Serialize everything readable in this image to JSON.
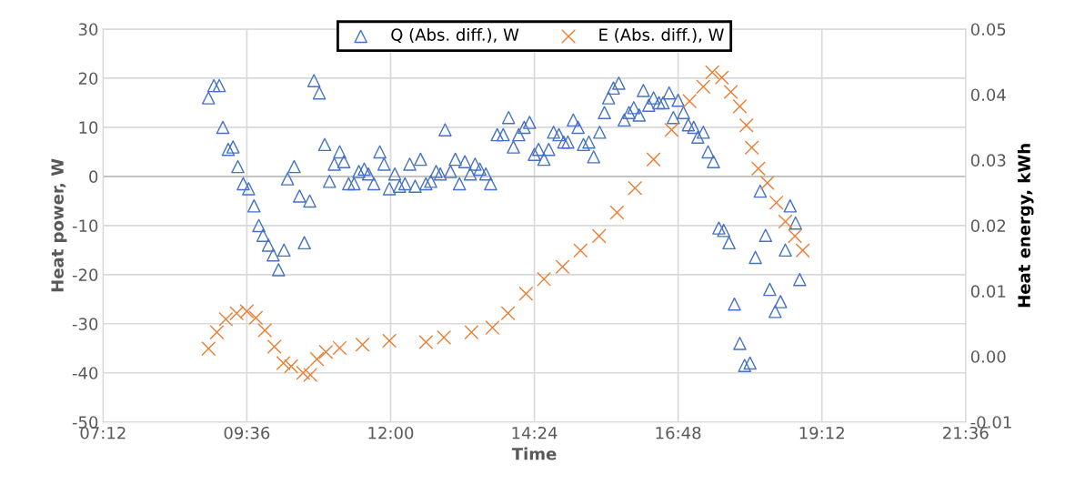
{
  "chart_data": {
    "type": "scatter",
    "xlabel": "Time",
    "ylabel": "Heat power, W",
    "y2label": "Heat energy, kWh",
    "xlim": [
      7.2,
      21.6
    ],
    "xticks": [
      {
        "value": 7.2,
        "label": "07:12"
      },
      {
        "value": 9.6,
        "label": "09:36"
      },
      {
        "value": 12,
        "label": "12:00"
      },
      {
        "value": 14.4,
        "label": "14:24"
      },
      {
        "value": 16.8,
        "label": "16:48"
      },
      {
        "value": 19.2,
        "label": "19:12"
      },
      {
        "value": 21.6,
        "label": "21:36"
      }
    ],
    "ylim": [
      -50,
      30
    ],
    "yticks": [
      -50,
      -40,
      -30,
      -20,
      -10,
      0,
      10,
      20,
      30
    ],
    "y2lim": [
      -0.01,
      0.05
    ],
    "y2ticks": [
      -0.01,
      {
        "value": 0,
        "label": "0.00"
      },
      0.01,
      0.02,
      0.03,
      0.04,
      0.05
    ],
    "grid": true,
    "legend": "top",
    "series": [
      {
        "name": "Q (Abs. diff.), W",
        "color": "#4472c4",
        "marker": "triangle",
        "x": [
          8.96,
          9.05,
          9.14,
          9.2,
          9.29,
          9.37,
          9.45,
          9.54,
          9.63,
          9.72,
          9.8,
          9.87,
          9.96,
          10.04,
          10.13,
          10.22,
          10.28,
          10.39,
          10.48,
          10.56,
          10.65,
          10.72,
          10.81,
          10.9,
          10.98,
          11.06,
          11.15,
          11.22,
          11.3,
          11.39,
          11.47,
          11.56,
          11.63,
          11.72,
          11.82,
          11.89,
          11.98,
          12.07,
          12.15,
          12.24,
          12.32,
          12.41,
          12.5,
          12.59,
          12.67,
          12.76,
          12.83,
          12.91,
          13.0,
          13.08,
          13.15,
          13.24,
          13.33,
          13.41,
          13.49,
          13.59,
          13.67,
          13.78,
          13.88,
          13.97,
          14.05,
          14.14,
          14.23,
          14.32,
          14.4,
          14.47,
          14.56,
          14.64,
          14.72,
          14.81,
          14.89,
          14.96,
          15.05,
          15.13,
          15.22,
          15.31,
          15.39,
          15.49,
          15.57,
          15.64,
          15.72,
          15.81,
          15.9,
          15.98,
          16.06,
          16.15,
          16.22,
          16.31,
          16.39,
          16.48,
          16.55,
          16.65,
          16.72,
          16.8,
          16.89,
          16.97,
          17.06,
          17.13,
          17.22,
          17.3,
          17.39,
          17.48,
          17.56,
          17.65,
          17.74,
          17.83,
          17.91,
          18.0,
          18.09,
          18.17,
          18.26,
          18.33,
          18.42,
          18.51,
          18.59,
          18.67,
          18.76,
          18.83
        ],
        "values": [
          16,
          18.5,
          18.5,
          10,
          5.5,
          6,
          2,
          -1.5,
          -2.5,
          -6,
          -10,
          -12,
          -14,
          -16,
          -19,
          -15,
          -0.5,
          2,
          -4,
          -13.5,
          -5,
          19.5,
          17,
          6.5,
          -1,
          2.5,
          5,
          3,
          -1.5,
          -1.5,
          1,
          1.5,
          0.5,
          -1.5,
          5,
          2.5,
          -2.5,
          0.5,
          -2,
          -1.5,
          2.5,
          -2,
          3.5,
          -1.5,
          -1,
          1,
          0.5,
          9.5,
          1,
          3.5,
          -1.5,
          3,
          0.5,
          2.5,
          1.5,
          0.5,
          -1.5,
          8.5,
          8.5,
          12,
          6,
          8.5,
          10,
          11,
          4.5,
          5.5,
          3.5,
          5.5,
          9,
          8.5,
          7,
          7,
          11.5,
          10,
          6.5,
          7,
          4,
          9,
          13,
          16,
          18,
          19,
          11.5,
          13,
          14,
          12.5,
          17.5,
          14.5,
          16,
          15,
          15,
          17,
          12,
          15.5,
          13,
          10.5,
          10,
          8,
          9,
          5,
          3,
          -10.5,
          -11,
          -13.5,
          -26,
          -34,
          -38.5,
          -38,
          -16.5,
          -3,
          -12,
          -23,
          -27.5,
          -25.5,
          -15,
          -6,
          -9.5,
          -21
        ]
      },
      {
        "name": "E (Abs. diff.), W",
        "color": "#ed7d31",
        "marker": "cross",
        "axis": "y2",
        "x": [
          8.96,
          9.1,
          9.25,
          9.43,
          9.6,
          9.75,
          9.9,
          10.06,
          10.21,
          10.34,
          10.54,
          10.66,
          10.77,
          10.92,
          11.15,
          11.53,
          11.98,
          12.59,
          12.89,
          13.35,
          13.7,
          13.96,
          14.26,
          14.56,
          14.87,
          15.17,
          15.48,
          15.78,
          16.08,
          16.39,
          16.69,
          16.99,
          17.22,
          17.37,
          17.53,
          17.68,
          17.83,
          17.94,
          18.03,
          18.14,
          18.29,
          18.44,
          18.59,
          18.75,
          18.88
        ],
        "values": [
          0.0012,
          0.0037,
          0.0057,
          0.0066,
          0.0069,
          0.0059,
          0.004,
          0.0015,
          -0.001,
          -0.0015,
          -0.0025,
          -0.0028,
          -0.0004,
          0.0007,
          0.0013,
          0.0018,
          0.0024,
          0.0022,
          0.0029,
          0.0037,
          0.0044,
          0.0066,
          0.0096,
          0.0118,
          0.0137,
          0.0162,
          0.0184,
          0.022,
          0.0257,
          0.0301,
          0.0346,
          0.039,
          0.0412,
          0.0434,
          0.0426,
          0.0404,
          0.0382,
          0.0353,
          0.0319,
          0.0287,
          0.0265,
          0.0235,
          0.0206,
          0.0184,
          0.0162
        ]
      }
    ]
  }
}
